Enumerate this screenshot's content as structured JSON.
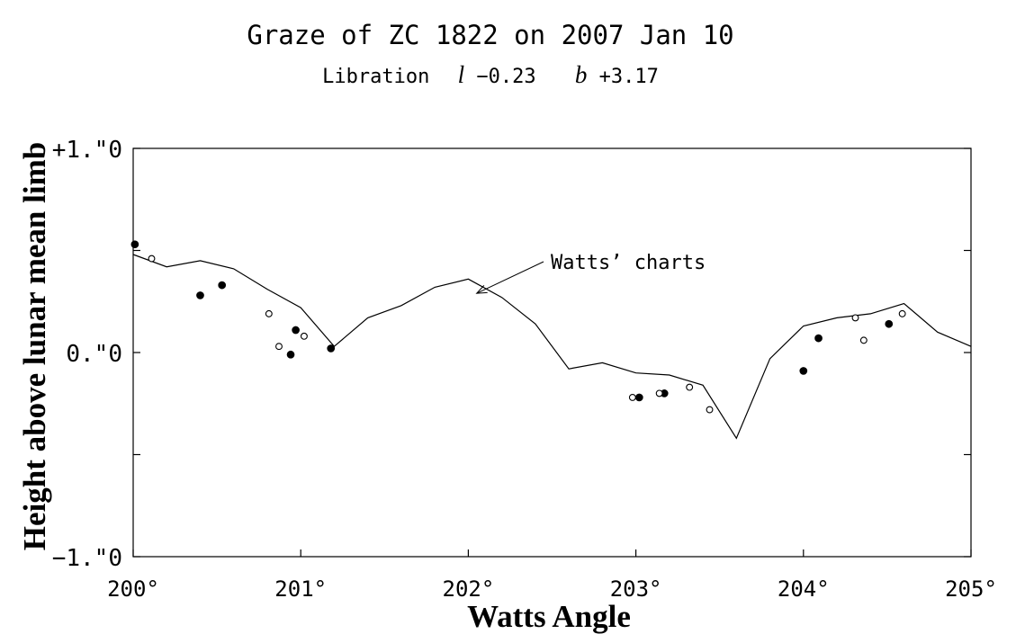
{
  "chart_data": {
    "type": "scatter",
    "title": "Graze of ZC 1822 on 2007 Jan 10",
    "subtitle": {
      "prefix": "Libration",
      "l_symbol": "l",
      "l_value": "−0.23",
      "b_symbol": "b",
      "b_value": "+3.17"
    },
    "xlabel": "Watts Angle",
    "ylabel": "Height above lunar mean limb",
    "xlim": [
      200,
      205
    ],
    "ylim": [
      -1.0,
      1.0
    ],
    "x_ticks": [
      {
        "value": 200,
        "label": "200°"
      },
      {
        "value": 201,
        "label": "201°"
      },
      {
        "value": 202,
        "label": "202°"
      },
      {
        "value": 203,
        "label": "203°"
      },
      {
        "value": 204,
        "label": "204°"
      },
      {
        "value": 205,
        "label": "205°"
      }
    ],
    "y_ticks": [
      {
        "value": 1.0,
        "label": "+1.\"0"
      },
      {
        "value": 0.0,
        "label": "0.\"0"
      },
      {
        "value": -1.0,
        "label": "−1.\"0"
      }
    ],
    "y_minor_ticks": [
      0.5,
      -0.5
    ],
    "annotation": {
      "text": "Watts’ charts",
      "x": 202.05,
      "y": 0.29
    },
    "profile_line": {
      "name": "Watts’ charts",
      "x": [
        200.0,
        200.2,
        200.4,
        200.6,
        200.8,
        201.0,
        201.2,
        201.4,
        201.6,
        201.8,
        202.0,
        202.2,
        202.4,
        202.6,
        202.8,
        203.0,
        203.2,
        203.4,
        203.6,
        203.8,
        204.0,
        204.2,
        204.4,
        204.6,
        204.8,
        205.0
      ],
      "y": [
        0.48,
        0.42,
        0.45,
        0.41,
        0.31,
        0.22,
        0.03,
        0.17,
        0.23,
        0.32,
        0.36,
        0.27,
        0.14,
        -0.08,
        -0.05,
        -0.1,
        -0.11,
        -0.16,
        -0.42,
        -0.03,
        0.13,
        0.17,
        0.19,
        0.24,
        0.1,
        0.03
      ]
    },
    "series": [
      {
        "marker": "filled-circle",
        "x": [
          200.01,
          200.4,
          200.53,
          200.94,
          200.97,
          201.18,
          203.02,
          203.17,
          204.0,
          204.09,
          204.51
        ],
        "y": [
          0.53,
          0.28,
          0.33,
          -0.01,
          0.11,
          0.02,
          -0.22,
          -0.2,
          -0.09,
          0.07,
          0.14
        ]
      },
      {
        "marker": "open-circle",
        "x": [
          200.11,
          200.81,
          200.87,
          201.02,
          202.98,
          203.14,
          203.32,
          203.44,
          204.31,
          204.36,
          204.59
        ],
        "y": [
          0.46,
          0.19,
          0.03,
          0.08,
          -0.22,
          -0.2,
          -0.17,
          -0.28,
          0.17,
          0.06,
          0.19
        ]
      }
    ]
  }
}
